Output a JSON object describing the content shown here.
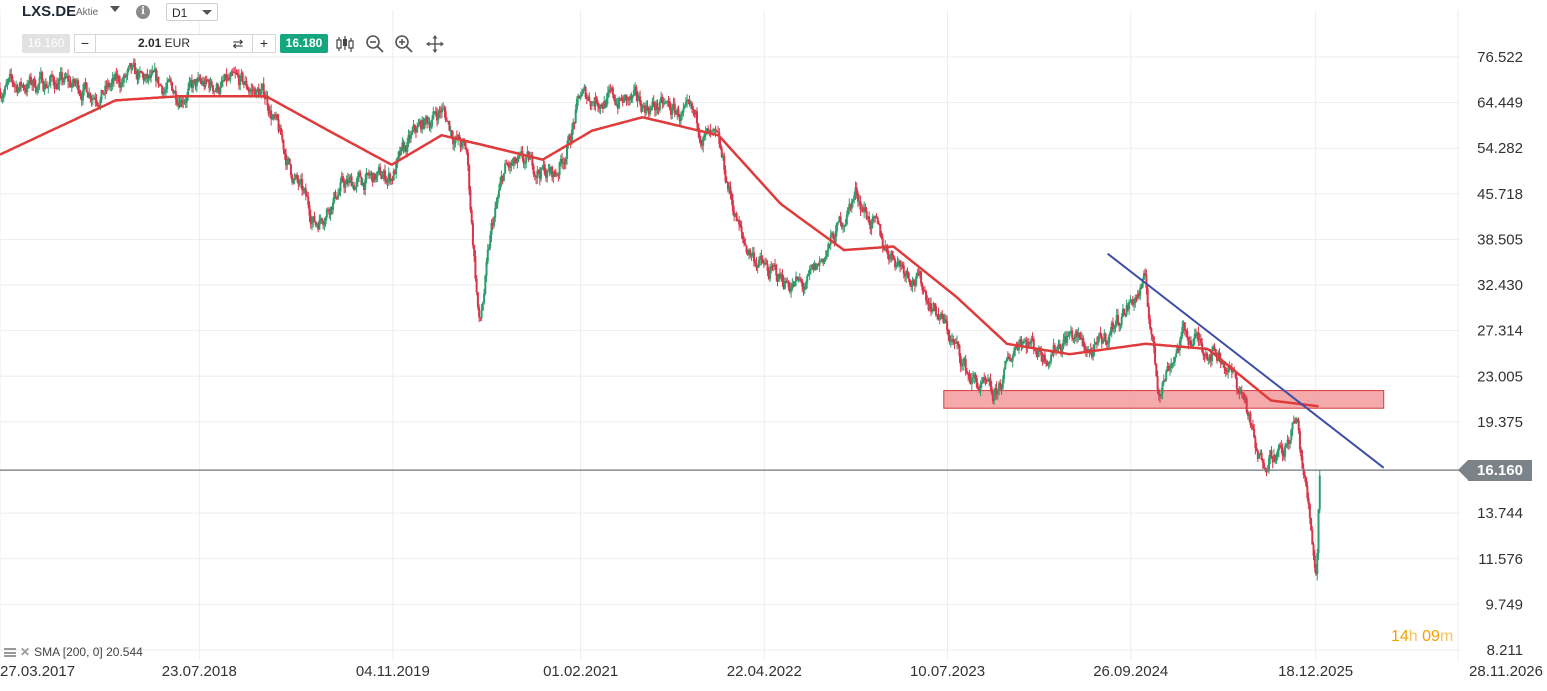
{
  "header": {
    "symbol": "LXS.DE",
    "symbol_type": "Aktie",
    "timeframe": "D1",
    "bid_price": "16.160",
    "ask_price": "16.180",
    "quantity_value": "2.01",
    "quantity_unit": "EUR",
    "minus_label": "−",
    "plus_label": "+",
    "swap_label": "⇄",
    "info_label": "i"
  },
  "toolbar_icons": [
    "candlestick-icon",
    "zoom-out-icon",
    "zoom-in-icon",
    "move-icon"
  ],
  "indicator_legend": "SMA [200, 0] 20.544",
  "countdown": {
    "hours": "14",
    "h_unit": "h",
    "minutes": "09",
    "m_unit": "m"
  },
  "current_price_label": "16.160",
  "colors": {
    "up": "#2e9d6d",
    "down": "#d9344a",
    "sma": "#e03b3b",
    "trendline": "#3b4fa8",
    "zone_fill": "#f29b9b",
    "zone_border": "#d93a3a",
    "current_line": "#6f767b"
  },
  "chart_data": {
    "type": "candlestick",
    "title": "",
    "xlabel": "",
    "ylabel": "",
    "y_scale": "log",
    "y_ticks": [
      "76.522",
      "64.449",
      "54.282",
      "45.718",
      "38.505",
      "32.430",
      "27.314",
      "23.005",
      "19.375",
      "16.160",
      "13.744",
      "11.576",
      "9.749",
      "8.211"
    ],
    "x_ticks": [
      "27.03.2017",
      "23.07.2018",
      "04.11.2019",
      "01.02.2021",
      "22.04.2022",
      "10.07.2023",
      "26.09.2024",
      "18.12.2025",
      "28.11.2026"
    ],
    "ylim": [
      8.211,
      76.522
    ],
    "current_price": 16.16,
    "price_series": {
      "name": "LXS.DE",
      "points": [
        [
          "27.03.2017",
          68.0
        ],
        [
          "01.08.2017",
          70.0
        ],
        [
          "01.12.2017",
          67.0
        ],
        [
          "01.02.2018",
          71.0
        ],
        [
          "01.06.2018",
          67.0
        ],
        [
          "01.08.2018",
          68.5
        ],
        [
          "01.11.2018",
          69.0
        ],
        [
          "01.01.2019",
          66.0
        ],
        [
          "01.03.2019",
          50.0
        ],
        [
          "01.05.2019",
          41.0
        ],
        [
          "01.07.2019",
          47.0
        ],
        [
          "01.11.2019",
          49.0
        ],
        [
          "01.01.2020",
          58.0
        ],
        [
          "01.03.2020",
          63.0
        ],
        [
          "01.04.2020",
          57.0
        ],
        [
          "01.05.2020",
          53.0
        ],
        [
          "01.06.2020",
          27.5
        ],
        [
          "01.07.2020",
          40.0
        ],
        [
          "01.08.2020",
          50.0
        ],
        [
          "01.10.2020",
          51.0
        ],
        [
          "01.12.2020",
          49.0
        ],
        [
          "01.01.2021",
          55.0
        ],
        [
          "01.02.2021",
          66.0
        ],
        [
          "01.05.2021",
          65.0
        ],
        [
          "01.09.2021",
          63.0
        ],
        [
          "01.11.2021",
          60.0
        ],
        [
          "01.01.2022",
          54.0
        ],
        [
          "01.02.2022",
          45.0
        ],
        [
          "01.03.2022",
          38.0
        ],
        [
          "01.05.2022",
          34.0
        ],
        [
          "01.08.2022",
          32.0
        ],
        [
          "01.10.2022",
          38.0
        ],
        [
          "01.12.2022",
          46.0
        ],
        [
          "01.02.2023",
          38.0
        ],
        [
          "01.05.2023",
          33.0
        ],
        [
          "01.07.2023",
          28.0
        ],
        [
          "01.09.2023",
          23.0
        ],
        [
          "01.11.2023",
          21.0
        ],
        [
          "01.01.2024",
          27.0
        ],
        [
          "01.03.2024",
          25.0
        ],
        [
          "01.05.2024",
          27.0
        ],
        [
          "01.07.2024",
          25.0
        ],
        [
          "01.09.2024",
          29.0
        ],
        [
          "01.11.2024",
          32.5
        ],
        [
          "01.12.2024",
          22.0
        ],
        [
          "01.02.2025",
          27.0
        ],
        [
          "01.05.2025",
          25.0
        ],
        [
          "01.07.2025",
          21.0
        ],
        [
          "01.08.2025",
          16.5
        ],
        [
          "01.09.2025",
          17.5
        ],
        [
          "01.10.2025",
          17.0
        ],
        [
          "01.11.2025",
          19.5
        ],
        [
          "01.12.2025",
          14.0
        ],
        [
          "20.12.2025",
          11.0
        ],
        [
          "28.12.2025",
          16.16
        ]
      ]
    },
    "sma_series": {
      "name": "SMA [200, 0]",
      "last_value": 20.544,
      "points": [
        [
          "27.03.2017",
          53.0
        ],
        [
          "01.01.2018",
          65.0
        ],
        [
          "01.06.2018",
          66.0
        ],
        [
          "01.01.2019",
          66.0
        ],
        [
          "01.06.2019",
          58.0
        ],
        [
          "01.11.2019",
          51.0
        ],
        [
          "01.03.2020",
          57.0
        ],
        [
          "01.07.2020",
          54.5
        ],
        [
          "01.11.2020",
          52.0
        ],
        [
          "01.03.2021",
          58.0
        ],
        [
          "01.07.2021",
          61.0
        ],
        [
          "01.01.2022",
          57.0
        ],
        [
          "01.06.2022",
          44.0
        ],
        [
          "01.11.2022",
          37.0
        ],
        [
          "01.03.2023",
          37.5
        ],
        [
          "01.08.2023",
          31.0
        ],
        [
          "01.12.2023",
          26.0
        ],
        [
          "01.05.2024",
          25.0
        ],
        [
          "01.11.2024",
          26.0
        ],
        [
          "01.04.2025",
          25.5
        ],
        [
          "01.09.2025",
          21.0
        ],
        [
          "28.12.2025",
          20.544
        ]
      ]
    },
    "trendline": {
      "start": [
        "01.08.2024",
        36.5
      ],
      "end": [
        "01.06.2026",
        16.3
      ]
    },
    "support_zone": {
      "x_start": "01.07.2023",
      "x_end": "01.06.2026",
      "y_low": 20.4,
      "y_high": 21.8
    },
    "grid": true,
    "legend": "bottom-left"
  }
}
